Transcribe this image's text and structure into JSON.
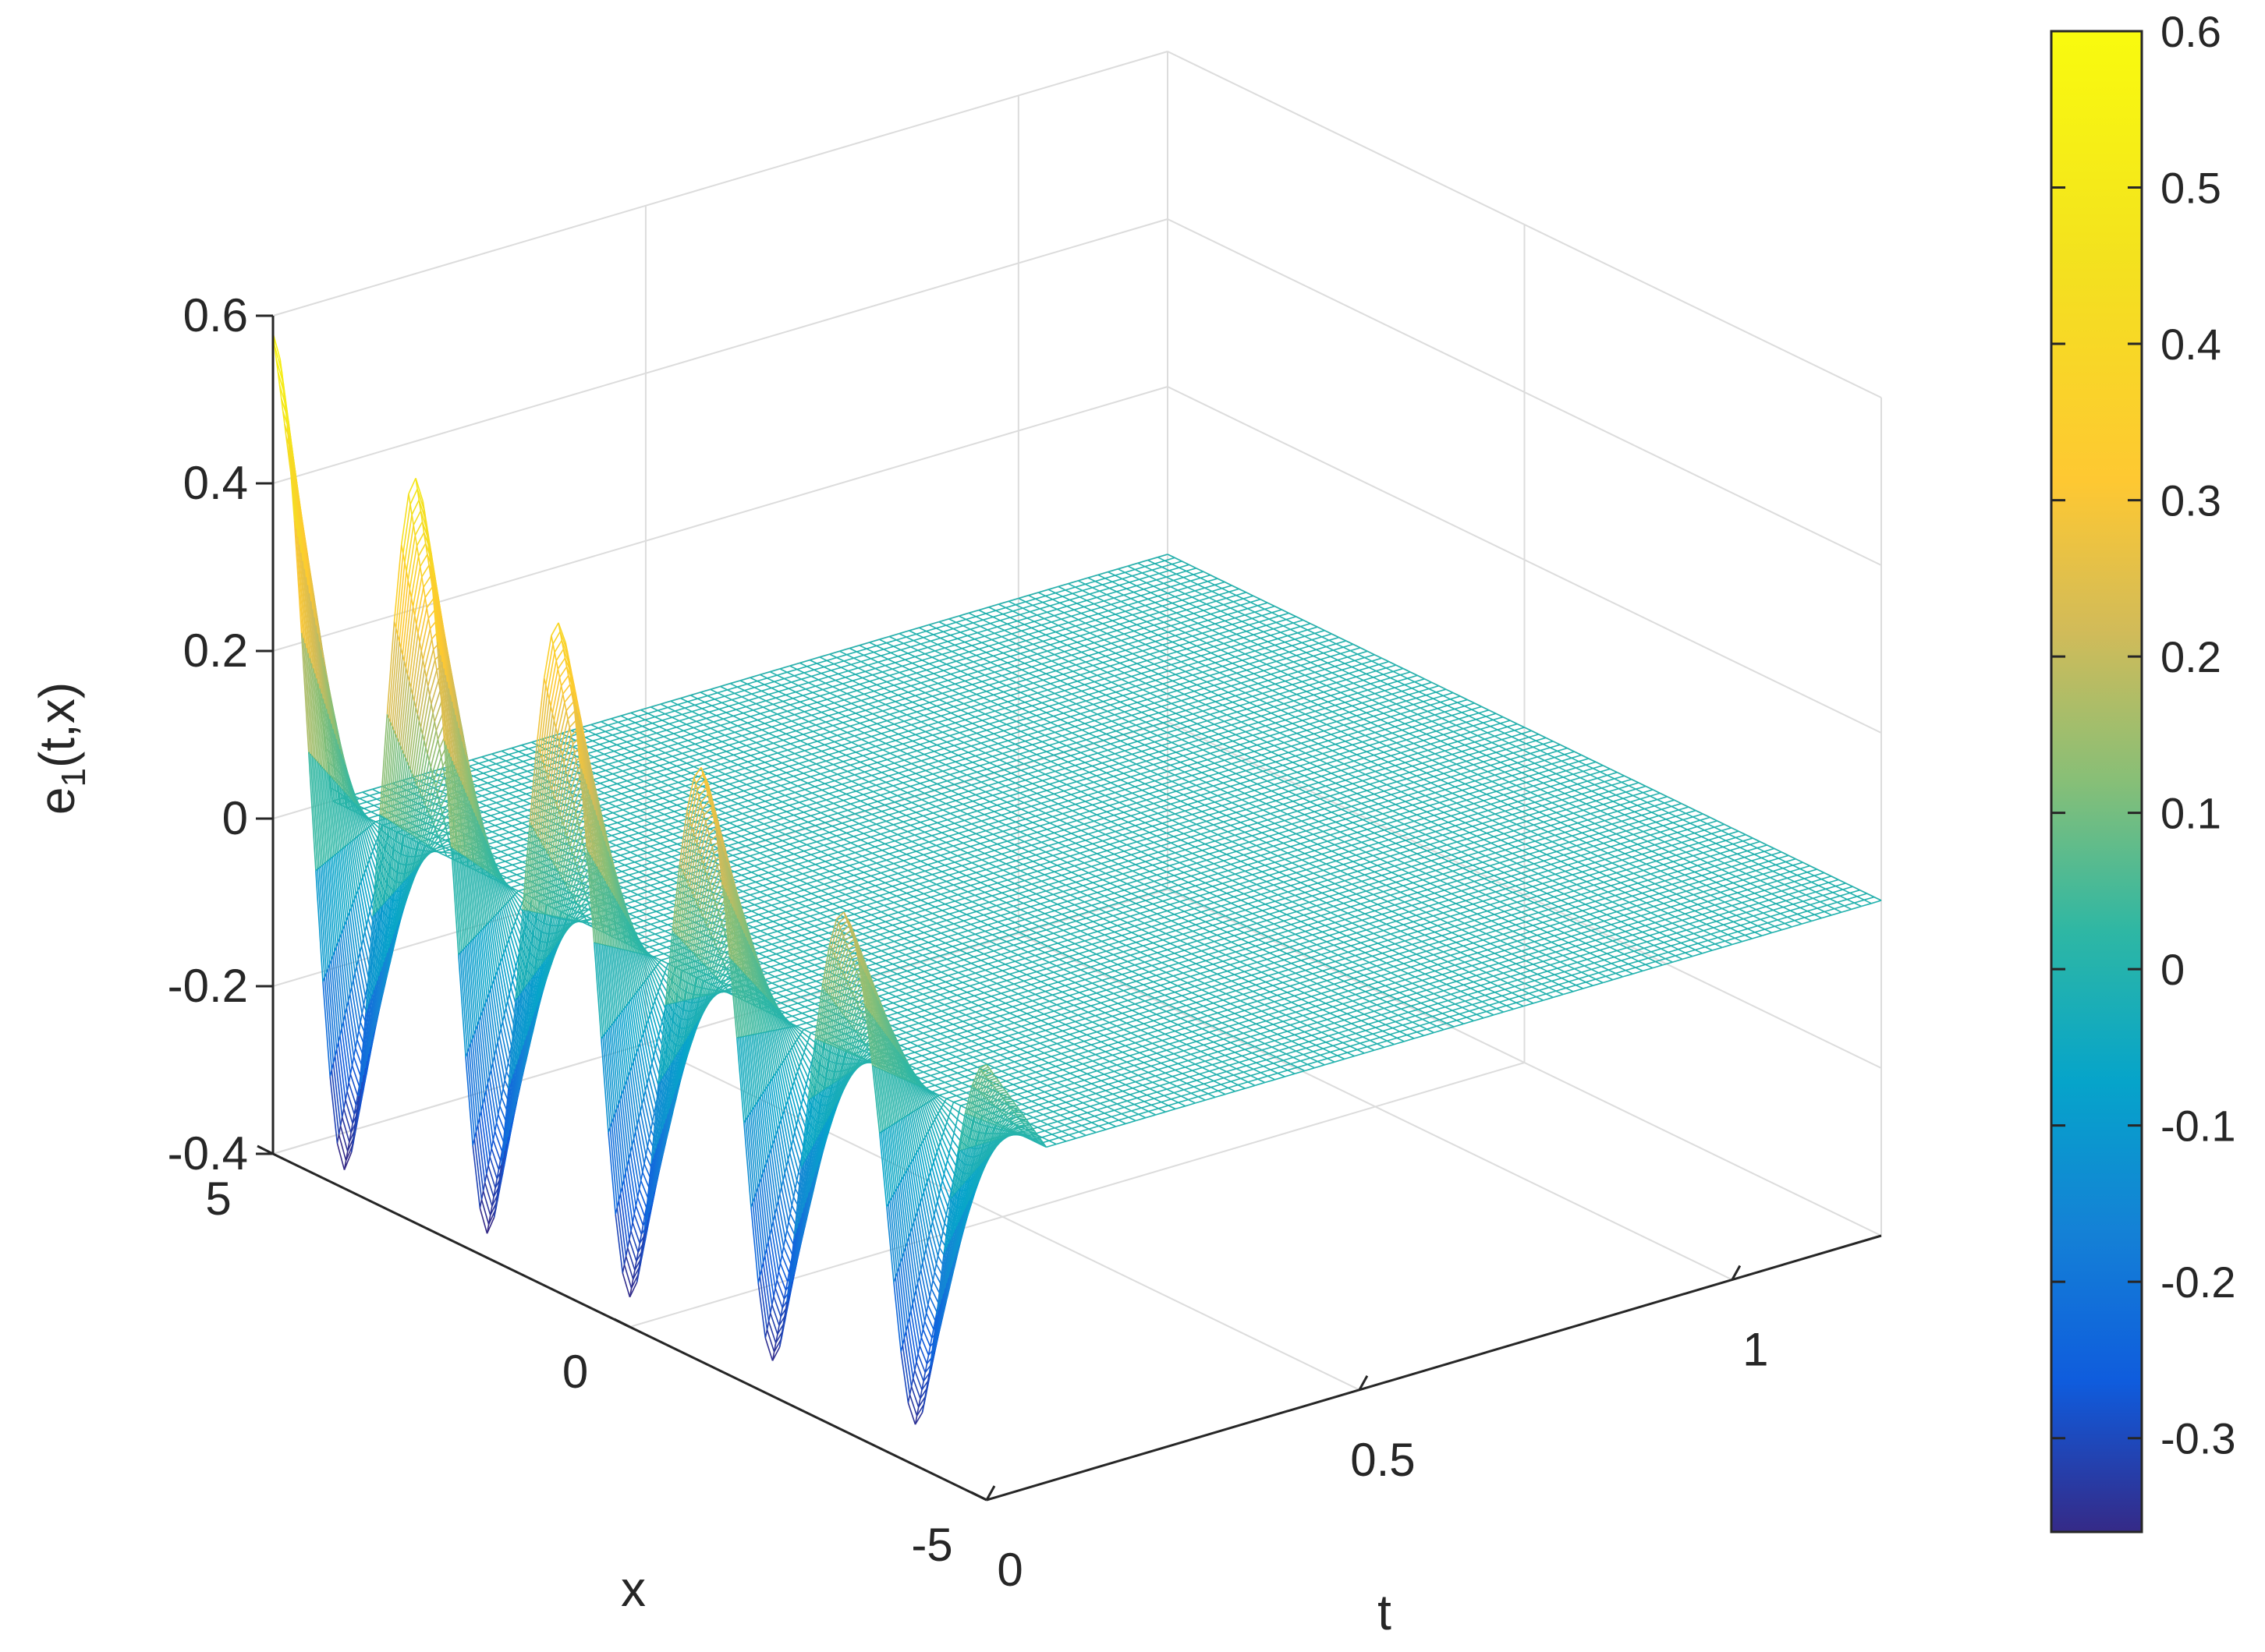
{
  "chart_data": {
    "type": "surface",
    "xlabel": "t",
    "ylabel": "x",
    "zlabel_base": "e",
    "zlabel_sub": "1",
    "zlabel_rest": "(t,x)",
    "t_range": [
      0,
      1.2
    ],
    "x_range": [
      -5,
      5
    ],
    "z_range": [
      -0.4,
      0.6
    ],
    "t_ticks": [
      {
        "value": 0,
        "label": "0"
      },
      {
        "value": 0.5,
        "label": "0.5"
      },
      {
        "value": 1,
        "label": "1"
      }
    ],
    "x_ticks": [
      {
        "value": -5,
        "label": "-5"
      },
      {
        "value": 0,
        "label": "0"
      },
      {
        "value": 5,
        "label": "5"
      }
    ],
    "z_ticks": [
      {
        "value": -0.4,
        "label": "-0.4"
      },
      {
        "value": -0.2,
        "label": "-0.2"
      },
      {
        "value": 0,
        "label": "0"
      },
      {
        "value": 0.2,
        "label": "0.2"
      },
      {
        "value": 0.4,
        "label": "0.4"
      },
      {
        "value": 0.6,
        "label": "0.6"
      }
    ],
    "surface": {
      "description_of_shape": "oscillating profile along x on initial boundary, decaying to ~0 for t>0",
      "active_t_max": 0.08,
      "peaks_x": [
        5,
        3,
        1,
        -1,
        -3,
        -5
      ],
      "peak_heights": [
        0.58,
        0.49,
        0.4,
        0.31,
        0.22,
        0.12
      ],
      "troughs_x": [
        4,
        2,
        0,
        -2,
        -4
      ],
      "trough_depths": [
        -0.4,
        -0.39,
        -0.38,
        -0.37,
        -0.36
      ],
      "plateau_value": -0.07
    },
    "grid": true,
    "colorbar": {
      "colormap": "parula",
      "min": -0.36,
      "max": 0.6,
      "ticks": [
        {
          "value": 0.6,
          "label": "0.6"
        },
        {
          "value": 0.5,
          "label": "0.5"
        },
        {
          "value": 0.4,
          "label": "0.4"
        },
        {
          "value": 0.3,
          "label": "0.3"
        },
        {
          "value": 0.2,
          "label": "0.2"
        },
        {
          "value": 0.1,
          "label": "0.1"
        },
        {
          "value": 0,
          "label": "0"
        },
        {
          "value": -0.1,
          "label": "-0.1"
        },
        {
          "value": -0.2,
          "label": "-0.2"
        },
        {
          "value": -0.3,
          "label": "-0.3"
        }
      ]
    }
  }
}
